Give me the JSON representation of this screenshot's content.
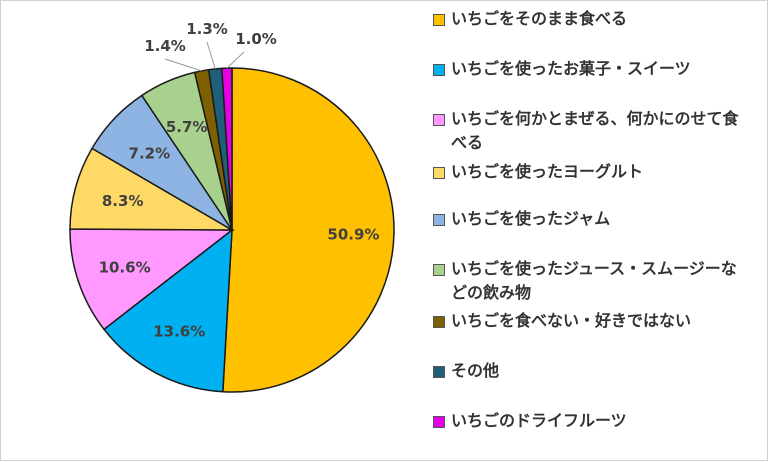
{
  "chart_data": {
    "type": "pie",
    "title": "",
    "slices": [
      {
        "label": "いちごをそのまま食べる",
        "value": 50.9,
        "value_label": "50.9%",
        "color": "#FFC000"
      },
      {
        "label": "いちごを使ったお菓子・スイーツ",
        "value": 13.6,
        "value_label": "13.6%",
        "color": "#00B0F0"
      },
      {
        "label": "いちごを何かとまぜる、何かにのせて食べる",
        "value": 10.6,
        "value_label": "10.6%",
        "color": "#FF99FF"
      },
      {
        "label": "いちごを使ったヨーグルト",
        "value": 8.3,
        "value_label": "8.3%",
        "color": "#FFD966"
      },
      {
        "label": "いちごを使ったジャム",
        "value": 7.2,
        "value_label": "7.2%",
        "color": "#8EB4E3"
      },
      {
        "label": "いちごを使ったジュース・スムージーなどの飲み物",
        "value": 5.7,
        "value_label": "5.7%",
        "color": "#A9D18E"
      },
      {
        "label": "いちごを食べない・好きではない",
        "value": 1.4,
        "value_label": "1.4%",
        "color": "#7F6000"
      },
      {
        "label": "その他",
        "value": 1.3,
        "value_label": "1.3%",
        "color": "#1F5F7A"
      },
      {
        "label": "いちごのドライフルーツ",
        "value": 1.0,
        "value_label": "1.0%",
        "color": "#E600E6"
      }
    ],
    "legend_position": "right",
    "start_angle": "top, clockwise"
  }
}
